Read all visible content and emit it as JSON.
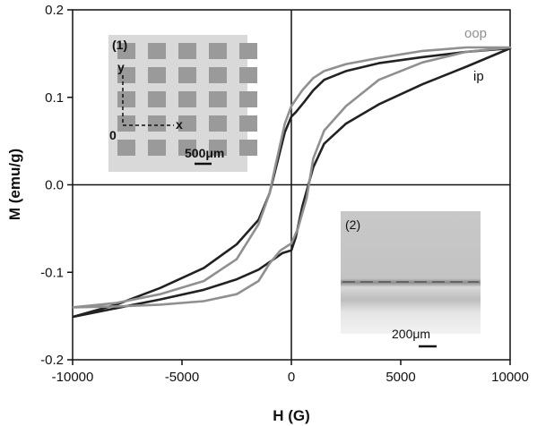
{
  "chart_data": {
    "type": "line",
    "xlabel": "H (G)",
    "ylabel": "M (emu/g)",
    "xlim": [
      -10000,
      10000
    ],
    "ylim": [
      -0.2,
      0.2
    ],
    "x_ticks": [
      "-10000",
      "-5000",
      "0",
      "5000",
      "10000"
    ],
    "y_ticks": [
      "0.2",
      "0.1",
      "0.0",
      "-0.1",
      "-0.2"
    ],
    "x_tick_values": [
      -10000,
      -5000,
      0,
      5000,
      10000
    ],
    "y_tick_values": [
      0.2,
      0.1,
      0.0,
      -0.1,
      -0.2
    ],
    "grid": false,
    "series": [
      {
        "name": "ip",
        "color": "#222222",
        "x": [
          -10000,
          -8000,
          -6000,
          -4000,
          -2500,
          -1500,
          -800,
          -400,
          0,
          200,
          500,
          1000,
          1500,
          2500,
          4000,
          6000,
          8000,
          10000,
          8000,
          6000,
          4000,
          2500,
          1500,
          1000,
          600,
          200,
          0,
          -300,
          -700,
          -1000,
          -1500,
          -2500,
          -4000,
          -6000,
          -8000,
          -10000
        ],
        "y": [
          -0.151,
          -0.141,
          -0.131,
          -0.12,
          -0.108,
          -0.097,
          -0.085,
          -0.078,
          -0.075,
          -0.06,
          -0.025,
          0.02,
          0.047,
          0.07,
          0.092,
          0.115,
          0.135,
          0.156,
          0.152,
          0.146,
          0.139,
          0.13,
          0.12,
          0.108,
          0.095,
          0.083,
          0.078,
          0.06,
          0.02,
          -0.01,
          -0.04,
          -0.068,
          -0.095,
          -0.118,
          -0.137,
          -0.151
        ]
      },
      {
        "name": "oop",
        "color": "#909090",
        "x": [
          -10000,
          -8000,
          -6000,
          -4000,
          -2500,
          -1500,
          -1000,
          -500,
          0,
          300,
          700,
          1000,
          1500,
          2500,
          4000,
          6000,
          8000,
          10000,
          8000,
          6000,
          4000,
          2500,
          1500,
          1000,
          500,
          0,
          -300,
          -700,
          -1000,
          -1500,
          -2500,
          -4000,
          -6000,
          -8000,
          -10000
        ],
        "y": [
          -0.14,
          -0.139,
          -0.137,
          -0.133,
          -0.125,
          -0.11,
          -0.09,
          -0.075,
          -0.067,
          -0.05,
          -0.015,
          0.03,
          0.062,
          0.09,
          0.12,
          0.14,
          0.152,
          0.157,
          0.157,
          0.153,
          0.145,
          0.138,
          0.13,
          0.122,
          0.108,
          0.09,
          0.07,
          0.025,
          -0.01,
          -0.045,
          -0.085,
          -0.11,
          -0.125,
          -0.135,
          -0.14
        ]
      }
    ],
    "insets": [
      {
        "label": "(1)",
        "scale_bar": "500μm",
        "axis_x": "x",
        "axis_y": "y",
        "origin": "0"
      },
      {
        "label": "(2)",
        "scale_bar": "200μm"
      }
    ]
  }
}
